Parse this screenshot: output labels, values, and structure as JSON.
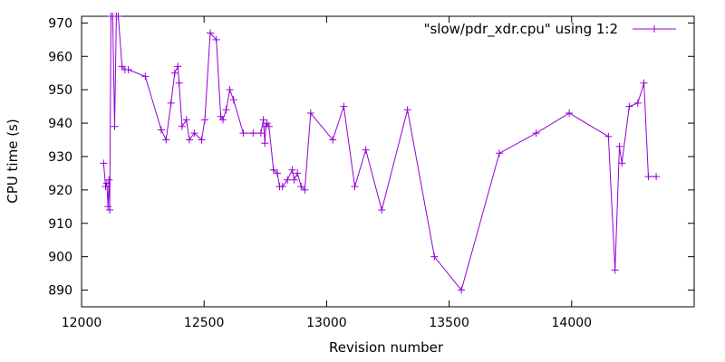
{
  "chart_data": {
    "type": "line",
    "title": "",
    "xlabel": "Revision number",
    "ylabel": "CPU time (s)",
    "xlim": [
      12000,
      14500
    ],
    "ylim": [
      885,
      972
    ],
    "xticks": [
      12000,
      12500,
      13000,
      13500,
      14000
    ],
    "yticks": [
      890,
      900,
      910,
      920,
      930,
      940,
      950,
      960,
      970
    ],
    "grid": false,
    "legend_position": "top-right",
    "series": [
      {
        "name": "\"slow/pdr_xdr.cpu\" using 1:2",
        "color": "#9400d3",
        "marker": "plus",
        "x": [
          12090,
          12098,
          12103,
          12108,
          12112,
          12115,
          12120,
          12127,
          12135,
          12142,
          12150,
          12165,
          12177,
          12191,
          12260,
          12325,
          12345,
          12365,
          12380,
          12393,
          12398,
          12410,
          12428,
          12440,
          12460,
          12490,
          12503,
          12525,
          12550,
          12568,
          12577,
          12590,
          12605,
          12620,
          12660,
          12700,
          12732,
          12742,
          12748,
          12752,
          12757,
          12765,
          12783,
          12799,
          12808,
          12820,
          12840,
          12860,
          12868,
          12881,
          12896,
          12911,
          12935,
          13025,
          13070,
          13115,
          13160,
          13225,
          13330,
          13440,
          13550,
          13705,
          13855,
          13990,
          14150,
          14177,
          14195,
          14205,
          14235,
          14270,
          14295,
          14313,
          14345
        ],
        "y": [
          928,
          921,
          922,
          915,
          923,
          914,
          972,
          972,
          939,
          972,
          972,
          957,
          956,
          956,
          954,
          938,
          935,
          946,
          955,
          957,
          952,
          939,
          941,
          935,
          937,
          935,
          941,
          967,
          965,
          942,
          941,
          944,
          950,
          947,
          937,
          937,
          937,
          941,
          934,
          939,
          940,
          939,
          926,
          925,
          921,
          921,
          923,
          926,
          923,
          925,
          921,
          920,
          943,
          935,
          945,
          921,
          932,
          914,
          944,
          900,
          890,
          931,
          937,
          943,
          936,
          896,
          933,
          928,
          945,
          946,
          952,
          924,
          924
        ]
      }
    ]
  }
}
